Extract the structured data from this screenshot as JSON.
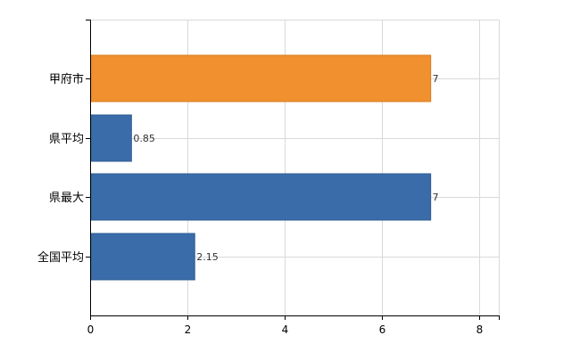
{
  "chart_data": {
    "type": "bar",
    "orientation": "horizontal",
    "categories": [
      "甲府市",
      "県平均",
      "県最大",
      "全国平均"
    ],
    "values": [
      7,
      0.85,
      7,
      2.15
    ],
    "value_labels": [
      "7",
      "0.85",
      "7",
      "2.15"
    ],
    "xlim": [
      0,
      8.4
    ],
    "xticks": [
      0,
      2,
      4,
      6,
      8
    ],
    "grid": true,
    "legend": "none",
    "colors": {
      "highlight": "#F0902E",
      "default": "#3A6CAA",
      "highlight_edge": "#D97C1E",
      "default_edge": "#2F5C92",
      "grid": "#D9D9D9",
      "axis": "#000000",
      "text": "#000000"
    },
    "highlight_index": 0
  }
}
